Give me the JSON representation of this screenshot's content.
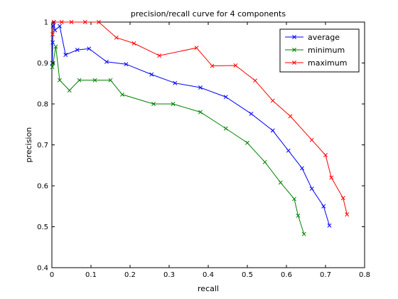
{
  "chart_data": {
    "type": "line",
    "title": "precision/recall curve for 4 components",
    "xlabel": "recall",
    "ylabel": "precision",
    "xlim": [
      0,
      0.8
    ],
    "ylim": [
      0.4,
      1
    ],
    "xticks": [
      0,
      0.1,
      0.2,
      0.3,
      0.4,
      0.5,
      0.6,
      0.7,
      0.8
    ],
    "yticks": [
      0.4,
      0.5,
      0.6,
      0.7,
      0.8,
      0.9,
      1
    ],
    "xtick_labels": [
      "0",
      "0.1",
      "0.2",
      "0.3",
      "0.4",
      "0.5",
      "0.6",
      "0.7",
      "0.8"
    ],
    "ytick_labels": [
      "0.4",
      "0.5",
      "0.6",
      "0.7",
      "0.8",
      "0.9",
      "1"
    ],
    "grid": false,
    "legend_position": "top-right",
    "marker": "x",
    "series": [
      {
        "name": "average",
        "color": "#0000ff",
        "points": [
          [
            0.001,
            0.9
          ],
          [
            0.002,
            0.95
          ],
          [
            0.003,
            0.99
          ],
          [
            0.005,
            1.0
          ],
          [
            0.008,
            0.98
          ],
          [
            0.02,
            0.99
          ],
          [
            0.035,
            0.92
          ],
          [
            0.065,
            0.932
          ],
          [
            0.095,
            0.935
          ],
          [
            0.14,
            0.903
          ],
          [
            0.19,
            0.897
          ],
          [
            0.255,
            0.872
          ],
          [
            0.315,
            0.851
          ],
          [
            0.38,
            0.84
          ],
          [
            0.445,
            0.817
          ],
          [
            0.51,
            0.776
          ],
          [
            0.565,
            0.735
          ],
          [
            0.605,
            0.686
          ],
          [
            0.64,
            0.643
          ],
          [
            0.665,
            0.593
          ],
          [
            0.695,
            0.55
          ],
          [
            0.71,
            0.503
          ]
        ]
      },
      {
        "name": "minimum",
        "color": "#008000",
        "points": [
          [
            0.001,
            0.89
          ],
          [
            0.003,
            0.9
          ],
          [
            0.01,
            0.94
          ],
          [
            0.02,
            0.858
          ],
          [
            0.045,
            0.833
          ],
          [
            0.07,
            0.858
          ],
          [
            0.11,
            0.858
          ],
          [
            0.15,
            0.858
          ],
          [
            0.18,
            0.823
          ],
          [
            0.26,
            0.8
          ],
          [
            0.31,
            0.8
          ],
          [
            0.38,
            0.78
          ],
          [
            0.445,
            0.74
          ],
          [
            0.5,
            0.705
          ],
          [
            0.545,
            0.658
          ],
          [
            0.585,
            0.608
          ],
          [
            0.62,
            0.568
          ],
          [
            0.63,
            0.527
          ],
          [
            0.645,
            0.482
          ]
        ]
      },
      {
        "name": "maximum",
        "color": "#ff0000",
        "points": [
          [
            0.002,
            0.97
          ],
          [
            0.005,
            1.0
          ],
          [
            0.025,
            1.0
          ],
          [
            0.05,
            1.0
          ],
          [
            0.085,
            1.0
          ],
          [
            0.12,
            1.0
          ],
          [
            0.165,
            0.962
          ],
          [
            0.21,
            0.948
          ],
          [
            0.275,
            0.918
          ],
          [
            0.37,
            0.937
          ],
          [
            0.41,
            0.893
          ],
          [
            0.47,
            0.894
          ],
          [
            0.52,
            0.857
          ],
          [
            0.565,
            0.808
          ],
          [
            0.61,
            0.77
          ],
          [
            0.665,
            0.712
          ],
          [
            0.7,
            0.675
          ],
          [
            0.715,
            0.62
          ],
          [
            0.745,
            0.57
          ],
          [
            0.755,
            0.53
          ]
        ]
      }
    ]
  }
}
